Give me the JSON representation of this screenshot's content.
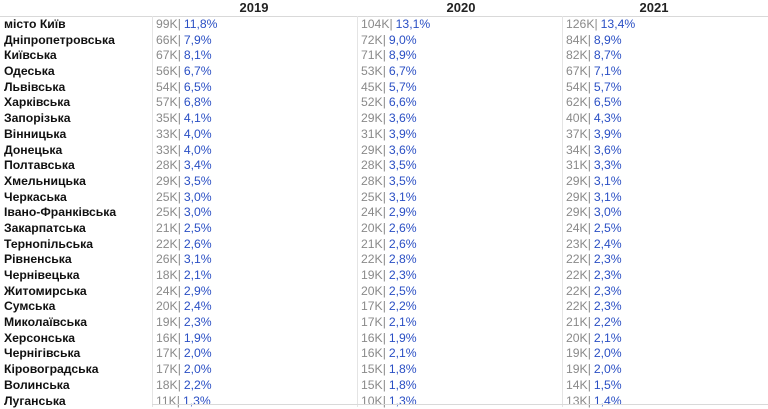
{
  "chart_data": {
    "type": "table",
    "columns": [
      "2019",
      "2020",
      "2021"
    ],
    "rows": [
      {
        "region": "місто Київ",
        "values": [
          [
            "99K",
            "11,8%"
          ],
          [
            "104K",
            "13,1%"
          ],
          [
            "126K",
            "13,4%"
          ]
        ]
      },
      {
        "region": "Дніпропетровська",
        "values": [
          [
            "66K",
            "7,9%"
          ],
          [
            "72K",
            "9,0%"
          ],
          [
            "84K",
            "8,9%"
          ]
        ]
      },
      {
        "region": "Київська",
        "values": [
          [
            "67K",
            "8,1%"
          ],
          [
            "71K",
            "8,9%"
          ],
          [
            "82K",
            "8,7%"
          ]
        ]
      },
      {
        "region": "Одеська",
        "values": [
          [
            "56K",
            "6,7%"
          ],
          [
            "53K",
            "6,7%"
          ],
          [
            "67K",
            "7,1%"
          ]
        ]
      },
      {
        "region": "Львівська",
        "values": [
          [
            "54K",
            "6,5%"
          ],
          [
            "45K",
            "5,7%"
          ],
          [
            "54K",
            "5,7%"
          ]
        ]
      },
      {
        "region": "Харківська",
        "values": [
          [
            "57K",
            "6,8%"
          ],
          [
            "52K",
            "6,6%"
          ],
          [
            "62K",
            "6,5%"
          ]
        ]
      },
      {
        "region": "Запорізька",
        "values": [
          [
            "35K",
            "4,1%"
          ],
          [
            "29K",
            "3,6%"
          ],
          [
            "40K",
            "4,3%"
          ]
        ]
      },
      {
        "region": "Вінницька",
        "values": [
          [
            "33K",
            "4,0%"
          ],
          [
            "31K",
            "3,9%"
          ],
          [
            "37K",
            "3,9%"
          ]
        ]
      },
      {
        "region": "Донецька",
        "values": [
          [
            "33K",
            "4,0%"
          ],
          [
            "29K",
            "3,6%"
          ],
          [
            "34K",
            "3,6%"
          ]
        ]
      },
      {
        "region": "Полтавська",
        "values": [
          [
            "28K",
            "3,4%"
          ],
          [
            "28K",
            "3,5%"
          ],
          [
            "31K",
            "3,3%"
          ]
        ]
      },
      {
        "region": "Хмельницька",
        "values": [
          [
            "29K",
            "3,5%"
          ],
          [
            "28K",
            "3,5%"
          ],
          [
            "29K",
            "3,1%"
          ]
        ]
      },
      {
        "region": "Черкаська",
        "values": [
          [
            "25K",
            "3,0%"
          ],
          [
            "25K",
            "3,1%"
          ],
          [
            "29K",
            "3,1%"
          ]
        ]
      },
      {
        "region": "Івано-Франківська",
        "values": [
          [
            "25K",
            "3,0%"
          ],
          [
            "24K",
            "2,9%"
          ],
          [
            "29K",
            "3,0%"
          ]
        ]
      },
      {
        "region": "Закарпатська",
        "values": [
          [
            "21K",
            "2,5%"
          ],
          [
            "20K",
            "2,6%"
          ],
          [
            "24K",
            "2,5%"
          ]
        ]
      },
      {
        "region": "Тернопільська",
        "values": [
          [
            "22K",
            "2,6%"
          ],
          [
            "21K",
            "2,6%"
          ],
          [
            "23K",
            "2,4%"
          ]
        ]
      },
      {
        "region": "Рівненська",
        "values": [
          [
            "26K",
            "3,1%"
          ],
          [
            "22K",
            "2,8%"
          ],
          [
            "22K",
            "2,3%"
          ]
        ]
      },
      {
        "region": "Чернівецька",
        "values": [
          [
            "18K",
            "2,1%"
          ],
          [
            "19K",
            "2,3%"
          ],
          [
            "22K",
            "2,3%"
          ]
        ]
      },
      {
        "region": "Житомирська",
        "values": [
          [
            "24K",
            "2,9%"
          ],
          [
            "20K",
            "2,5%"
          ],
          [
            "22K",
            "2,3%"
          ]
        ]
      },
      {
        "region": "Сумська",
        "values": [
          [
            "20K",
            "2,4%"
          ],
          [
            "17K",
            "2,2%"
          ],
          [
            "22K",
            "2,3%"
          ]
        ]
      },
      {
        "region": "Миколаївська",
        "values": [
          [
            "19K",
            "2,3%"
          ],
          [
            "17K",
            "2,1%"
          ],
          [
            "21K",
            "2,2%"
          ]
        ]
      },
      {
        "region": "Херсонська",
        "values": [
          [
            "16K",
            "1,9%"
          ],
          [
            "16K",
            "1,9%"
          ],
          [
            "20K",
            "2,1%"
          ]
        ]
      },
      {
        "region": "Чернігівська",
        "values": [
          [
            "17K",
            "2,0%"
          ],
          [
            "16K",
            "2,1%"
          ],
          [
            "19K",
            "2,0%"
          ]
        ]
      },
      {
        "region": "Кіровоградська",
        "values": [
          [
            "17K",
            "2,0%"
          ],
          [
            "15K",
            "1,8%"
          ],
          [
            "19K",
            "2,0%"
          ]
        ]
      },
      {
        "region": "Волинська",
        "values": [
          [
            "18K",
            "2,2%"
          ],
          [
            "15K",
            "1,8%"
          ],
          [
            "14K",
            "1,5%"
          ]
        ]
      },
      {
        "region": "Луганська",
        "values": [
          [
            "11K",
            "1,3%"
          ],
          [
            "10K",
            "1,3%"
          ],
          [
            "13K",
            "1,4%"
          ]
        ]
      }
    ],
    "colors": {
      "absolute": "#8a8a8a",
      "percent": "#2a4fc4"
    }
  }
}
